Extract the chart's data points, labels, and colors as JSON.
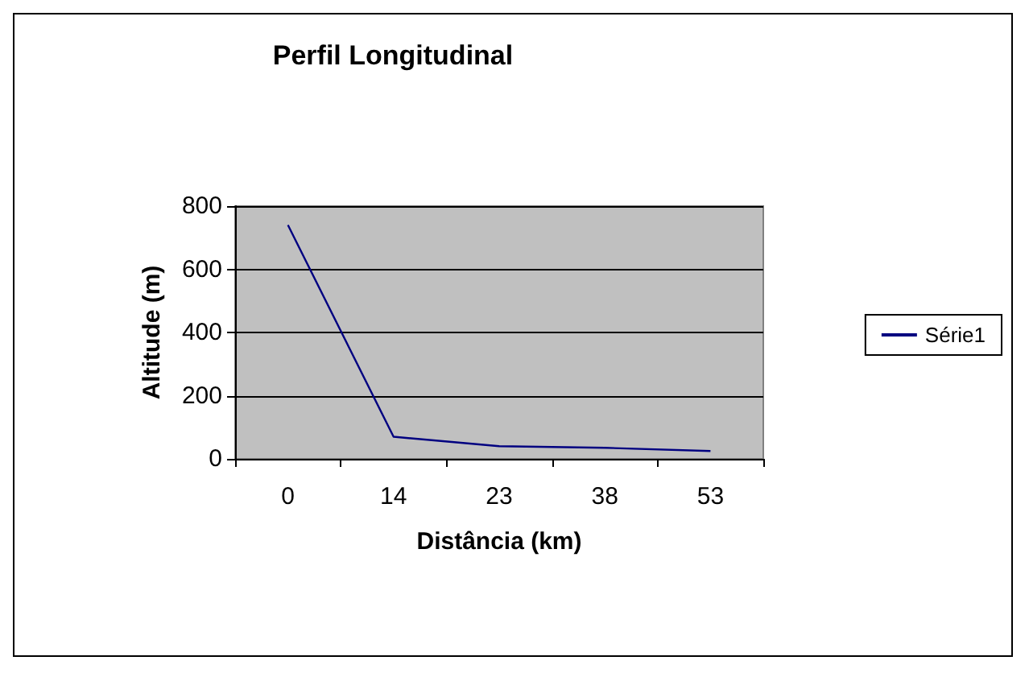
{
  "chart_data": {
    "type": "line",
    "title": "Perfil Longitudinal",
    "xlabel": "Distância (km)",
    "ylabel": "Altitude (m)",
    "categories": [
      "0",
      "14",
      "23",
      "38",
      "53"
    ],
    "series": [
      {
        "name": "Série1",
        "color": "#000080",
        "values": [
          740,
          70,
          40,
          35,
          25
        ]
      }
    ],
    "ylim": [
      0,
      800
    ],
    "yticks": [
      0,
      200,
      400,
      600,
      800
    ],
    "grid": "y",
    "legend": "right",
    "marker": "none"
  }
}
